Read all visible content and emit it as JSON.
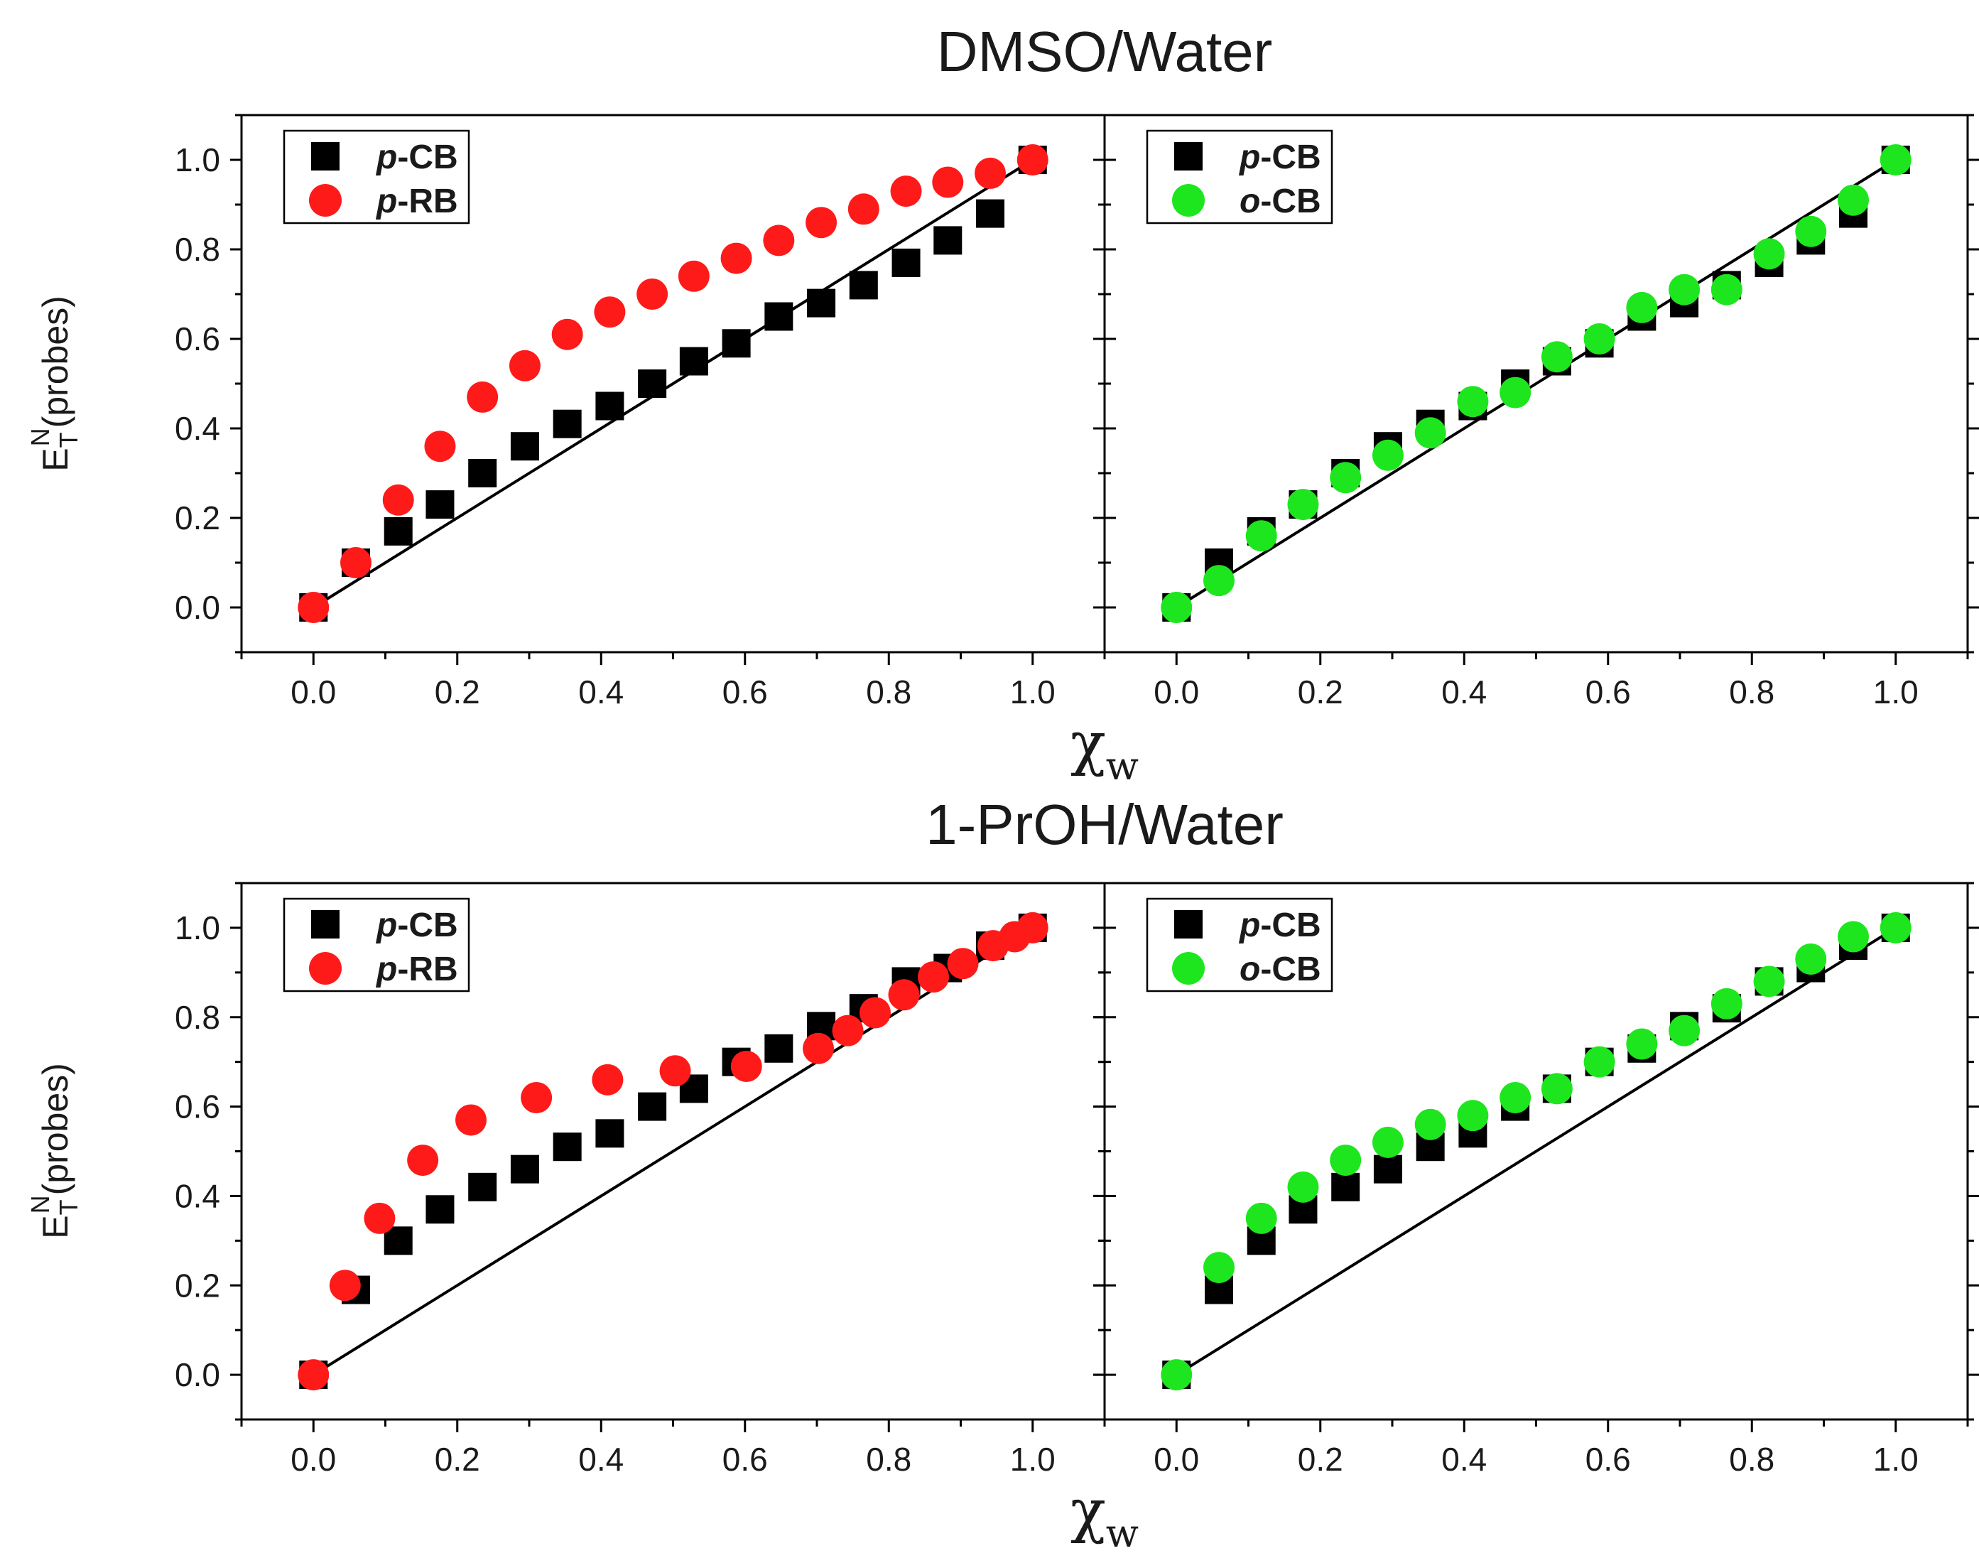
{
  "colors": {
    "pCB": "#000000",
    "pRB": "#ff1a1a",
    "oCB": "#1ee61e",
    "line": "#000000"
  },
  "chart_data": [
    {
      "type": "scatter",
      "title": "DMSO/Water",
      "xlabel": "χ",
      "xlabel_sub": "w",
      "ylabel": "E",
      "ylabel_sub": "T",
      "ylabel_sup": "N",
      "ylabel_rest": "(probes)",
      "ylim": [
        -0.1,
        1.1
      ],
      "xlim": [
        -0.1,
        1.1
      ],
      "yticks": [
        "0.0",
        "0.2",
        "0.4",
        "0.6",
        "0.8",
        "1.0"
      ],
      "xticks": [
        "0.0",
        "0.2",
        "0.4",
        "0.6",
        "0.8",
        "1.0"
      ],
      "panels": [
        {
          "legend": [
            {
              "italic": "p",
              "rest": "-CB",
              "marker": "square",
              "color": "#000000"
            },
            {
              "italic": "p",
              "rest": "-RB",
              "marker": "circle",
              "color": "#ff1a1a"
            }
          ],
          "reference_line": {
            "x": [
              0,
              1
            ],
            "y": [
              0,
              1
            ]
          },
          "series": [
            {
              "name": "p-CB",
              "marker": "square",
              "color": "#000000",
              "x": [
                0,
                0.059,
                0.118,
                0.176,
                0.235,
                0.294,
                0.353,
                0.412,
                0.471,
                0.529,
                0.588,
                0.647,
                0.706,
                0.765,
                0.824,
                0.882,
                0.941,
                1.0
              ],
              "y": [
                0,
                0.1,
                0.17,
                0.23,
                0.3,
                0.36,
                0.41,
                0.45,
                0.5,
                0.55,
                0.59,
                0.65,
                0.68,
                0.72,
                0.77,
                0.82,
                0.88,
                1.0
              ]
            },
            {
              "name": "p-RB",
              "marker": "circle",
              "color": "#ff1a1a",
              "x": [
                0,
                0.059,
                0.118,
                0.176,
                0.235,
                0.294,
                0.353,
                0.412,
                0.471,
                0.529,
                0.588,
                0.647,
                0.706,
                0.765,
                0.824,
                0.882,
                0.941,
                1.0
              ],
              "y": [
                0,
                0.1,
                0.24,
                0.36,
                0.47,
                0.54,
                0.61,
                0.66,
                0.7,
                0.74,
                0.78,
                0.82,
                0.86,
                0.89,
                0.93,
                0.95,
                0.97,
                1.0
              ]
            }
          ]
        },
        {
          "legend": [
            {
              "italic": "p",
              "rest": "-CB",
              "marker": "square",
              "color": "#000000"
            },
            {
              "italic": "o",
              "rest": "-CB",
              "marker": "circle",
              "color": "#1ee61e"
            }
          ],
          "reference_line": {
            "x": [
              0,
              1
            ],
            "y": [
              0,
              1
            ]
          },
          "series": [
            {
              "name": "p-CB",
              "marker": "square",
              "color": "#000000",
              "x": [
                0,
                0.059,
                0.118,
                0.176,
                0.235,
                0.294,
                0.353,
                0.412,
                0.471,
                0.529,
                0.588,
                0.647,
                0.706,
                0.765,
                0.824,
                0.882,
                0.941,
                1.0
              ],
              "y": [
                0,
                0.1,
                0.17,
                0.23,
                0.3,
                0.36,
                0.41,
                0.45,
                0.5,
                0.55,
                0.59,
                0.65,
                0.68,
                0.72,
                0.77,
                0.82,
                0.88,
                1.0
              ]
            },
            {
              "name": "o-CB",
              "marker": "circle",
              "color": "#1ee61e",
              "x": [
                0,
                0.059,
                0.118,
                0.176,
                0.235,
                0.294,
                0.353,
                0.412,
                0.471,
                0.529,
                0.588,
                0.647,
                0.706,
                0.765,
                0.824,
                0.882,
                0.941,
                1.0
              ],
              "y": [
                0,
                0.06,
                0.16,
                0.23,
                0.29,
                0.34,
                0.39,
                0.46,
                0.48,
                0.56,
                0.6,
                0.67,
                0.71,
                0.71,
                0.79,
                0.84,
                0.91,
                1.0
              ]
            }
          ]
        }
      ]
    },
    {
      "type": "scatter",
      "title": "1-PrOH/Water",
      "xlabel": "χ",
      "xlabel_sub": "w",
      "ylabel": "E",
      "ylabel_sub": "T",
      "ylabel_sup": "N",
      "ylabel_rest": "(probes)",
      "ylim": [
        -0.1,
        1.1
      ],
      "xlim": [
        -0.1,
        1.1
      ],
      "yticks": [
        "0.0",
        "0.2",
        "0.4",
        "0.6",
        "0.8",
        "1.0"
      ],
      "xticks": [
        "0.0",
        "0.2",
        "0.4",
        "0.6",
        "0.8",
        "1.0"
      ],
      "panels": [
        {
          "legend": [
            {
              "italic": "p",
              "rest": "-CB",
              "marker": "square",
              "color": "#000000"
            },
            {
              "italic": "p",
              "rest": "-RB",
              "marker": "circle",
              "color": "#ff1a1a"
            }
          ],
          "reference_line": {
            "x": [
              0,
              1
            ],
            "y": [
              0,
              1
            ]
          },
          "series": [
            {
              "name": "p-CB",
              "marker": "square",
              "color": "#000000",
              "x": [
                0,
                0.059,
                0.118,
                0.176,
                0.235,
                0.294,
                0.353,
                0.412,
                0.471,
                0.529,
                0.588,
                0.647,
                0.706,
                0.765,
                0.824,
                0.882,
                0.941,
                1.0
              ],
              "y": [
                0,
                0.19,
                0.3,
                0.37,
                0.42,
                0.46,
                0.51,
                0.54,
                0.6,
                0.64,
                0.7,
                0.73,
                0.78,
                0.82,
                0.88,
                0.91,
                0.96,
                1.0
              ]
            },
            {
              "name": "p-RB",
              "marker": "circle",
              "color": "#ff1a1a",
              "x": [
                0,
                0.044,
                0.092,
                0.152,
                0.219,
                0.31,
                0.409,
                0.503,
                0.602,
                0.702,
                0.743,
                0.781,
                0.821,
                0.862,
                0.903,
                0.945,
                0.975,
                1.0
              ],
              "y": [
                0,
                0.2,
                0.35,
                0.48,
                0.57,
                0.62,
                0.66,
                0.68,
                0.69,
                0.73,
                0.77,
                0.81,
                0.85,
                0.89,
                0.92,
                0.96,
                0.98,
                1.0
              ]
            }
          ]
        },
        {
          "legend": [
            {
              "italic": "p",
              "rest": "-CB",
              "marker": "square",
              "color": "#000000"
            },
            {
              "italic": "o",
              "rest": "-CB",
              "marker": "circle",
              "color": "#1ee61e"
            }
          ],
          "reference_line": {
            "x": [
              0,
              1
            ],
            "y": [
              0,
              1
            ]
          },
          "series": [
            {
              "name": "p-CB",
              "marker": "square",
              "color": "#000000",
              "x": [
                0,
                0.059,
                0.118,
                0.176,
                0.235,
                0.294,
                0.353,
                0.412,
                0.471,
                0.529,
                0.588,
                0.647,
                0.706,
                0.765,
                0.824,
                0.882,
                0.941,
                1.0
              ],
              "y": [
                0,
                0.19,
                0.3,
                0.37,
                0.42,
                0.46,
                0.51,
                0.54,
                0.6,
                0.64,
                0.7,
                0.73,
                0.78,
                0.82,
                0.88,
                0.91,
                0.96,
                1.0
              ]
            },
            {
              "name": "o-CB",
              "marker": "circle",
              "color": "#1ee61e",
              "x": [
                0,
                0.059,
                0.118,
                0.176,
                0.235,
                0.294,
                0.353,
                0.412,
                0.471,
                0.529,
                0.588,
                0.647,
                0.706,
                0.765,
                0.824,
                0.882,
                0.941,
                1.0
              ],
              "y": [
                0,
                0.24,
                0.35,
                0.42,
                0.48,
                0.52,
                0.56,
                0.58,
                0.62,
                0.64,
                0.7,
                0.74,
                0.77,
                0.83,
                0.88,
                0.93,
                0.98,
                1.0
              ]
            }
          ]
        }
      ]
    }
  ]
}
